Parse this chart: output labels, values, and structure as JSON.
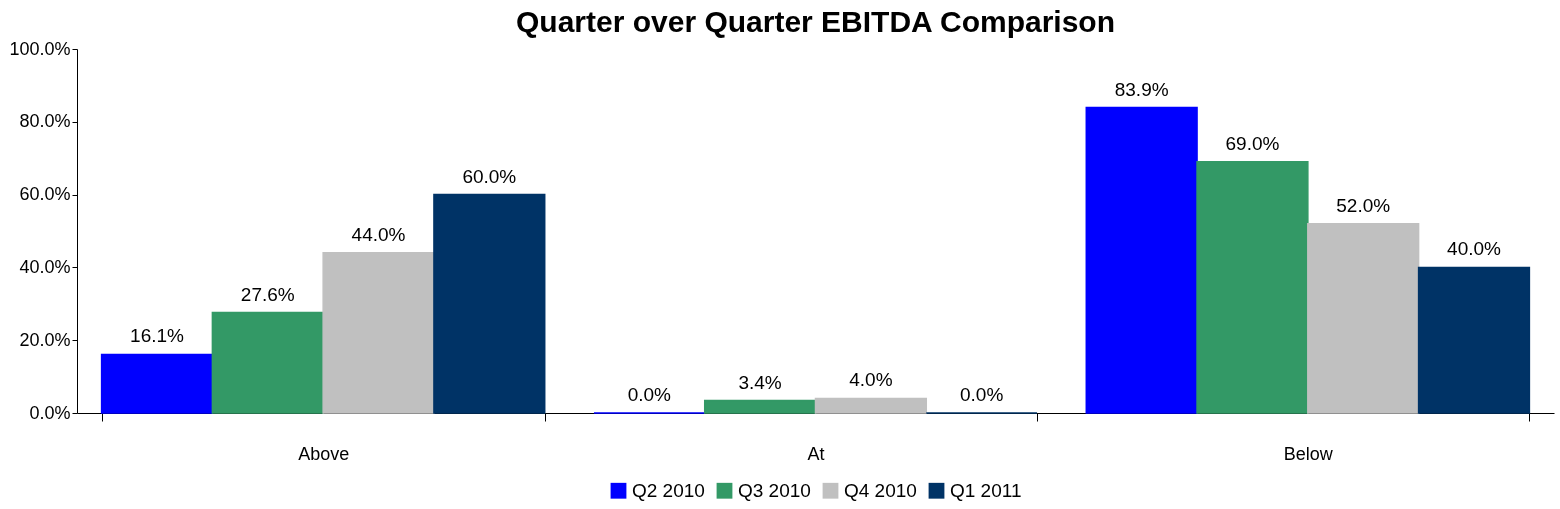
{
  "chart_data": {
    "type": "bar",
    "title": "Quarter over Quarter EBITDA Comparison",
    "categories": [
      "Above",
      "At",
      "Below"
    ],
    "series": [
      {
        "name": "Q2 2010",
        "color": "#0000ff",
        "values": [
          16.1,
          0.0,
          83.9
        ],
        "value_labels": [
          "16.1%",
          "0.0%",
          "83.9%"
        ]
      },
      {
        "name": "Q3 2010",
        "color": "#339966",
        "values": [
          27.6,
          3.4,
          69.0
        ],
        "value_labels": [
          "27.6%",
          "3.4%",
          "69.0%"
        ]
      },
      {
        "name": "Q4 2010",
        "color": "#c0c0c0",
        "values": [
          44.0,
          4.0,
          52.0
        ],
        "value_labels": [
          "44.0%",
          "4.0%",
          "52.0%"
        ]
      },
      {
        "name": "Q1 2011",
        "color": "#003366",
        "values": [
          60.0,
          0.0,
          40.0
        ],
        "value_labels": [
          "60.0%",
          "0.0%",
          "40.0%"
        ]
      }
    ],
    "ylim": [
      0,
      100
    ],
    "yticks": [
      {
        "value": 0,
        "label": "0.0%"
      },
      {
        "value": 20,
        "label": "20.0%"
      },
      {
        "value": 40,
        "label": "40.0%"
      },
      {
        "value": 60,
        "label": "60.0%"
      },
      {
        "value": 80,
        "label": "80.0%"
      },
      {
        "value": 100,
        "label": "100.0%"
      }
    ],
    "legend": "bottom",
    "grid": false
  }
}
